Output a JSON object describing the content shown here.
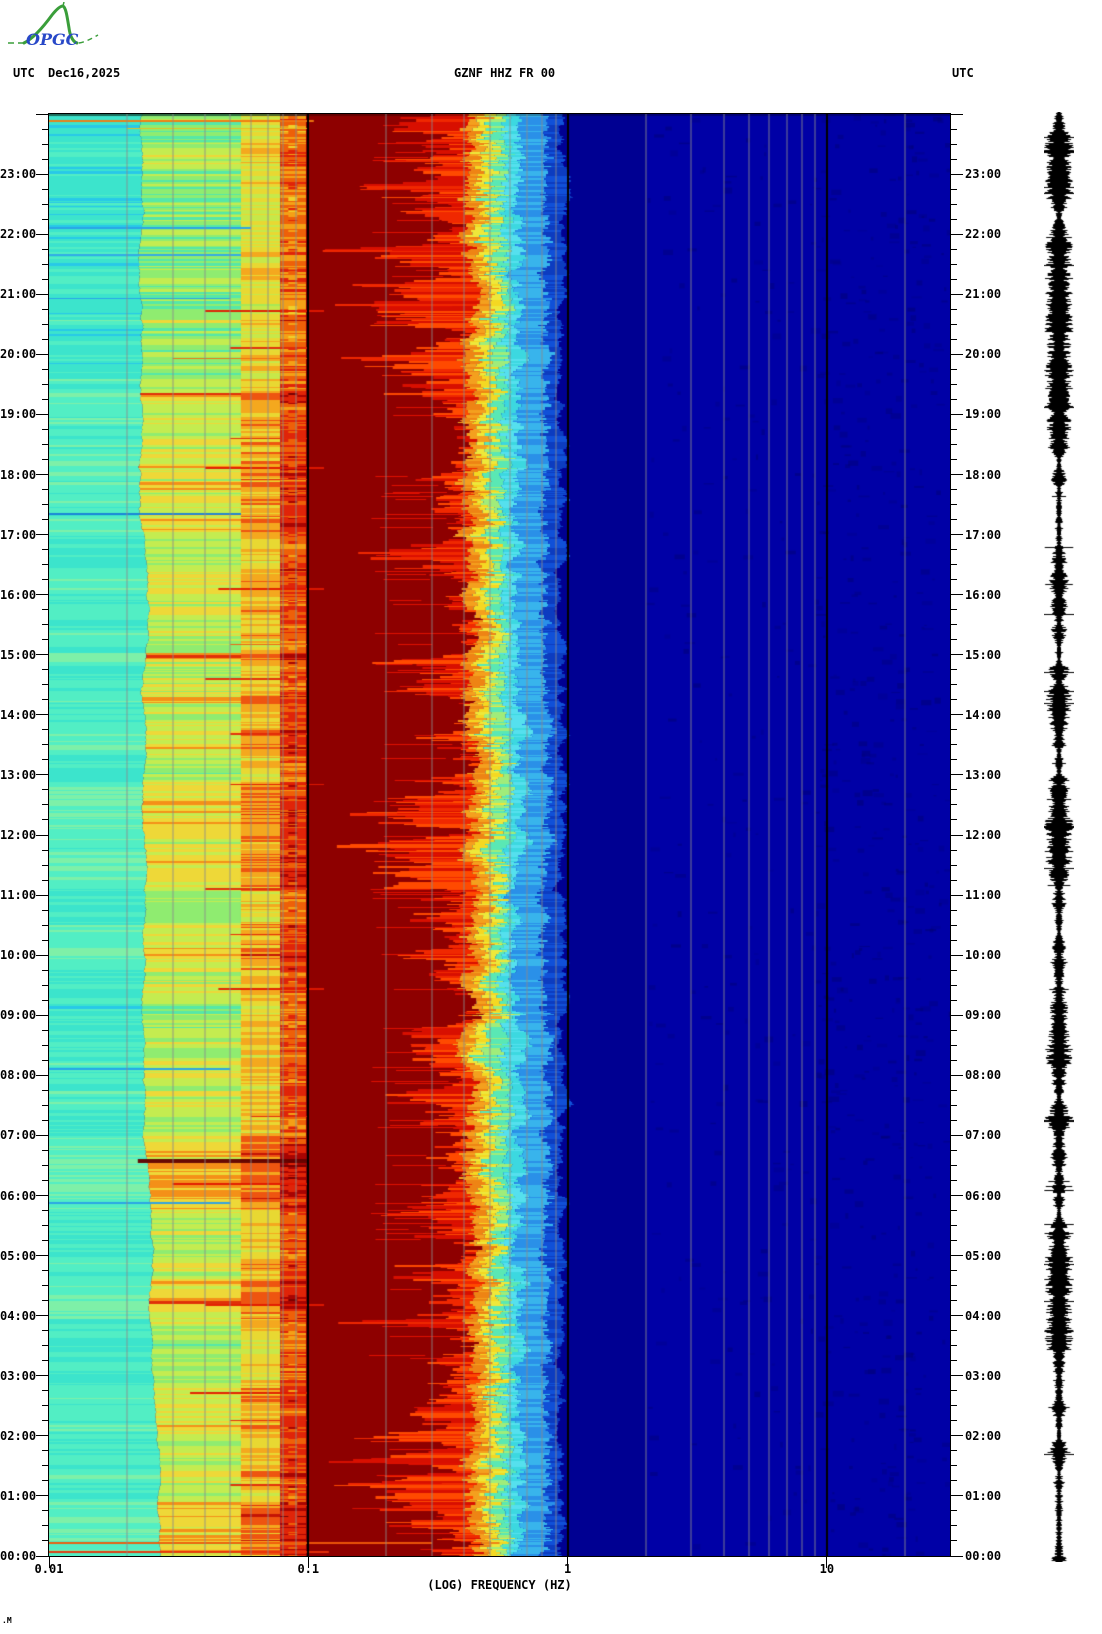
{
  "header": {
    "tz_left": "UTC",
    "date": "Dec16,2025",
    "station": "GZNF HHZ FR 00",
    "tz_right": "UTC"
  },
  "logo": {
    "text": "OPGC",
    "curve_color": "#3a9e3a",
    "text_color": "#2848c8"
  },
  "footer_mark": ".M",
  "chart_data": {
    "type": "heatmap",
    "subtype": "seismic spectrogram, 24h",
    "title": "GZNF HHZ FR 00",
    "date": "Dec16,2025",
    "timezone": "UTC",
    "xlabel": "(LOG) FREQUENCY (HZ)",
    "x_scale": "log",
    "x_range_hz": [
      0.01,
      30
    ],
    "x_ticks": [
      {
        "hz": 0.01,
        "label": "0.01"
      },
      {
        "hz": 0.1,
        "label": "0.1"
      },
      {
        "hz": 1,
        "label": "1"
      },
      {
        "hz": 10,
        "label": "10"
      }
    ],
    "y_axis": {
      "start": "00:00",
      "end": "24:00",
      "minor_tick_minutes": 15,
      "hour_labels": [
        "00:00",
        "01:00",
        "02:00",
        "03:00",
        "04:00",
        "05:00",
        "06:00",
        "07:00",
        "08:00",
        "09:00",
        "10:00",
        "11:00",
        "12:00",
        "13:00",
        "14:00",
        "15:00",
        "16:00",
        "17:00",
        "18:00",
        "19:00",
        "20:00",
        "21:00",
        "22:00",
        "23:00"
      ]
    },
    "gridlines": {
      "minor_color": "#8c8c8c",
      "major_color": "#000000",
      "minor_hz": [
        0.02,
        0.03,
        0.04,
        0.05,
        0.06,
        0.07,
        0.08,
        0.09,
        0.2,
        0.3,
        0.4,
        0.5,
        0.6,
        0.7,
        0.8,
        0.9,
        2,
        3,
        4,
        5,
        6,
        7,
        8,
        9,
        20
      ],
      "major_hz": [
        0.1,
        1,
        10
      ]
    },
    "colormap": "jet-like: navy=low power, dark red=high power",
    "bands": [
      {
        "f": [
          0.01,
          0.023
        ],
        "base": "#3ce4cc",
        "palette": [
          "#18a0f0",
          "#28c8e8",
          "#3ce4cc",
          "#52eec4",
          "#7ef0a8",
          "#b4ee6c"
        ]
      },
      {
        "f": [
          0.023,
          0.055
        ],
        "base": "#55e8a8",
        "palette": [
          "#30d8d0",
          "#55e8a8",
          "#8fec70",
          "#c4ec50",
          "#eed838",
          "#f49018",
          "#e03008"
        ]
      },
      {
        "f": [
          0.055,
          0.078
        ],
        "base": "#c6e84a",
        "palette": [
          "#a8e855",
          "#c6e84a",
          "#e8d832",
          "#f4a81e",
          "#ee5510",
          "#c41404"
        ]
      },
      {
        "f": [
          0.078,
          0.098
        ],
        "base": "#f0a016",
        "palette": [
          "#f0d02a",
          "#f4a016",
          "#ee6008",
          "#e02408",
          "#a80402",
          "#7c0000"
        ]
      },
      {
        "f": [
          0.098,
          0.42
        ],
        "base": "#8e0000",
        "streak_colors": [
          "#d80f00",
          "#f02800",
          "#ff4a00"
        ]
      },
      {
        "f": [
          0.42,
          0.49
        ],
        "base": "#ee8414"
      },
      {
        "f": [
          0.49,
          0.55
        ],
        "base": "#f4d822"
      },
      {
        "f": [
          0.55,
          0.65
        ],
        "base": "#5ae8b4"
      },
      {
        "f": [
          0.65,
          0.8
        ],
        "base": "#38b4ec"
      },
      {
        "f": [
          0.8,
          0.95
        ],
        "base": "#1050d8"
      },
      {
        "f": [
          0.95,
          2
        ],
        "base": "#000092"
      },
      {
        "f": [
          2,
          30
        ],
        "base": "#0000a6",
        "mottle": "#000078"
      }
    ],
    "hourly_intensity": [
      0.65,
      0.5,
      0.55,
      0.5,
      0.6,
      0.55,
      0.75,
      0.6,
      0.5,
      0.6,
      0.55,
      0.6,
      0.6,
      0.55,
      0.5,
      0.55,
      0.6,
      0.65,
      0.6,
      0.5,
      0.45,
      0.35,
      0.3,
      0.35
    ],
    "hourly_streak": [
      0.6,
      0.55,
      0.6,
      0.55,
      0.6,
      0.5,
      0.55,
      0.45,
      0.5,
      0.55,
      0.5,
      0.55,
      0.5,
      0.45,
      0.5,
      0.45,
      0.5,
      0.45,
      0.4,
      0.55,
      0.6,
      0.65,
      0.6,
      0.65
    ],
    "events": [
      {
        "t": "23:52",
        "f0": 0.01,
        "f1": 0.105,
        "color": "#f07a10",
        "h": 2
      },
      {
        "t": "23:45",
        "f0": 0.02,
        "f1": 0.1,
        "color": "#e8c020",
        "h": 1
      },
      {
        "t": "22:05",
        "f0": 0.01,
        "f1": 0.06,
        "color": "#28a0e8",
        "h": 2
      },
      {
        "t": "21:38",
        "f0": 0.01,
        "f1": 0.055,
        "color": "#30a8e8",
        "h": 2
      },
      {
        "t": "20:55",
        "f0": 0.01,
        "f1": 0.05,
        "color": "#28a0e8",
        "h": 1
      },
      {
        "t": "20:42",
        "f0": 0.04,
        "f1": 0.115,
        "color": "#e01800",
        "h": 2
      },
      {
        "t": "20:05",
        "f0": 0.05,
        "f1": 0.1,
        "color": "#e02808",
        "h": 2
      },
      {
        "t": "19:55",
        "f0": 0.03,
        "f1": 0.1,
        "color": "#f07010",
        "h": 1
      },
      {
        "t": "18:35",
        "f0": 0.05,
        "f1": 0.1,
        "color": "#e02808",
        "h": 1
      },
      {
        "t": "18:05",
        "f0": 0.04,
        "f1": 0.115,
        "color": "#e01800",
        "h": 2
      },
      {
        "t": "17:55",
        "f0": 0.055,
        "f1": 0.1,
        "color": "#e02808",
        "h": 1
      },
      {
        "t": "17:20",
        "f0": 0.01,
        "f1": 0.055,
        "color": "#1880d8",
        "h": 2
      },
      {
        "t": "16:05",
        "f0": 0.045,
        "f1": 0.115,
        "color": "#e01800",
        "h": 2
      },
      {
        "t": "15:10",
        "f0": 0.05,
        "f1": 0.1,
        "color": "#f06010",
        "h": 1
      },
      {
        "t": "14:35",
        "f0": 0.04,
        "f1": 0.1,
        "color": "#e02808",
        "h": 2
      },
      {
        "t": "13:40",
        "f0": 0.05,
        "f1": 0.1,
        "color": "#e02808",
        "h": 2
      },
      {
        "t": "12:50",
        "f0": 0.05,
        "f1": 0.115,
        "color": "#e01800",
        "h": 1
      },
      {
        "t": "12:20",
        "f0": 0.055,
        "f1": 0.1,
        "color": "#e02808",
        "h": 1
      },
      {
        "t": "11:05",
        "f0": 0.04,
        "f1": 0.1,
        "color": "#e02808",
        "h": 2
      },
      {
        "t": "10:20",
        "f0": 0.05,
        "f1": 0.1,
        "color": "#e02808",
        "h": 1
      },
      {
        "t": "09:25",
        "f0": 0.045,
        "f1": 0.115,
        "color": "#e01800",
        "h": 2
      },
      {
        "t": "08:05",
        "f0": 0.01,
        "f1": 0.05,
        "color": "#28a0e8",
        "h": 2
      },
      {
        "t": "07:18",
        "f0": 0.06,
        "f1": 0.1,
        "color": "#e02808",
        "h": 1
      },
      {
        "t": "06:32",
        "f0": 0.022,
        "f1": 0.1,
        "color": "#600000",
        "h": 4
      },
      {
        "t": "06:10",
        "f0": 0.03,
        "f1": 0.1,
        "color": "#e01800",
        "h": 2
      },
      {
        "t": "05:52",
        "f0": 0.01,
        "f1": 0.05,
        "color": "#28a0e8",
        "h": 2
      },
      {
        "t": "04:10",
        "f0": 0.04,
        "f1": 0.115,
        "color": "#e01800",
        "h": 2
      },
      {
        "t": "02:42",
        "f0": 0.035,
        "f1": 0.1,
        "color": "#e01800",
        "h": 2
      },
      {
        "t": "02:15",
        "f0": 0.05,
        "f1": 0.1,
        "color": "#e02808",
        "h": 1
      },
      {
        "t": "01:10",
        "f0": 0.05,
        "f1": 0.1,
        "color": "#e02808",
        "h": 2
      },
      {
        "t": "00:50",
        "f0": 0.055,
        "f1": 0.1,
        "color": "#e02808",
        "h": 1
      },
      {
        "t": "00:12",
        "f0": 0.01,
        "f1": 0.3,
        "color": "#f05808",
        "h": 2
      },
      {
        "t": "00:03",
        "f0": 0.01,
        "f1": 0.12,
        "color": "#e83008",
        "h": 2
      }
    ],
    "side_trace": {
      "kind": "vertical seismogram",
      "color": "#000000"
    }
  }
}
